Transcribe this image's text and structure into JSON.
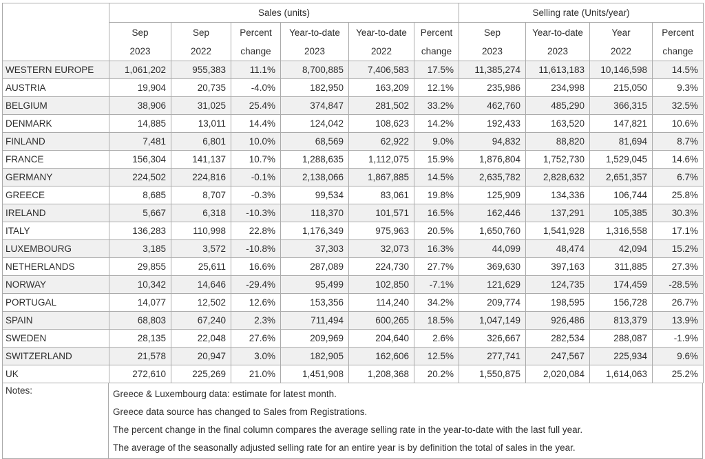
{
  "table": {
    "header_groups": [
      {
        "label": "Sales (units)"
      },
      {
        "label": "Selling rate (Units/year)"
      }
    ],
    "sub_headers": [
      [
        "Sep",
        "2023"
      ],
      [
        "Sep",
        "2022"
      ],
      [
        "Percent",
        "change"
      ],
      [
        "Year-to-date",
        "2023"
      ],
      [
        "Year-to-date",
        "2022"
      ],
      [
        "Percent",
        "change"
      ],
      [
        "Sep",
        "2023"
      ],
      [
        "Year-to-date",
        "2023"
      ],
      [
        "Year",
        "2022"
      ],
      [
        "Percent",
        "change"
      ]
    ],
    "rows": [
      {
        "country": "WESTERN EUROPE",
        "values": [
          "1,061,202",
          "955,383",
          "11.1%",
          "8,700,885",
          "7,406,583",
          "17.5%",
          "11,385,274",
          "11,613,183",
          "10,146,598",
          "14.5%"
        ]
      },
      {
        "country": "AUSTRIA",
        "values": [
          "19,904",
          "20,735",
          "-4.0%",
          "182,950",
          "163,209",
          "12.1%",
          "235,986",
          "234,998",
          "215,050",
          "9.3%"
        ]
      },
      {
        "country": "BELGIUM",
        "values": [
          "38,906",
          "31,025",
          "25.4%",
          "374,847",
          "281,502",
          "33.2%",
          "462,760",
          "485,290",
          "366,315",
          "32.5%"
        ]
      },
      {
        "country": "DENMARK",
        "values": [
          "14,885",
          "13,011",
          "14.4%",
          "124,042",
          "108,623",
          "14.2%",
          "192,433",
          "163,520",
          "147,821",
          "10.6%"
        ]
      },
      {
        "country": "FINLAND",
        "values": [
          "7,481",
          "6,801",
          "10.0%",
          "68,569",
          "62,922",
          "9.0%",
          "94,832",
          "88,820",
          "81,694",
          "8.7%"
        ]
      },
      {
        "country": "FRANCE",
        "values": [
          "156,304",
          "141,137",
          "10.7%",
          "1,288,635",
          "1,112,075",
          "15.9%",
          "1,876,804",
          "1,752,730",
          "1,529,045",
          "14.6%"
        ]
      },
      {
        "country": "GERMANY",
        "values": [
          "224,502",
          "224,816",
          "-0.1%",
          "2,138,066",
          "1,867,885",
          "14.5%",
          "2,635,782",
          "2,828,632",
          "2,651,357",
          "6.7%"
        ]
      },
      {
        "country": "GREECE",
        "values": [
          "8,685",
          "8,707",
          "-0.3%",
          "99,534",
          "83,061",
          "19.8%",
          "125,909",
          "134,336",
          "106,744",
          "25.8%"
        ]
      },
      {
        "country": "IRELAND",
        "values": [
          "5,667",
          "6,318",
          "-10.3%",
          "118,370",
          "101,571",
          "16.5%",
          "162,446",
          "137,291",
          "105,385",
          "30.3%"
        ]
      },
      {
        "country": "ITALY",
        "values": [
          "136,283",
          "110,998",
          "22.8%",
          "1,176,349",
          "975,963",
          "20.5%",
          "1,650,760",
          "1,541,928",
          "1,316,558",
          "17.1%"
        ]
      },
      {
        "country": "LUXEMBOURG",
        "values": [
          "3,185",
          "3,572",
          "-10.8%",
          "37,303",
          "32,073",
          "16.3%",
          "44,099",
          "48,474",
          "42,094",
          "15.2%"
        ]
      },
      {
        "country": "NETHERLANDS",
        "values": [
          "29,855",
          "25,611",
          "16.6%",
          "287,089",
          "224,730",
          "27.7%",
          "369,630",
          "397,163",
          "311,885",
          "27.3%"
        ]
      },
      {
        "country": "NORWAY",
        "values": [
          "10,342",
          "14,646",
          "-29.4%",
          "95,499",
          "102,850",
          "-7.1%",
          "121,629",
          "124,735",
          "174,459",
          "-28.5%"
        ]
      },
      {
        "country": "PORTUGAL",
        "values": [
          "14,077",
          "12,502",
          "12.6%",
          "153,356",
          "114,240",
          "34.2%",
          "209,774",
          "198,595",
          "156,728",
          "26.7%"
        ]
      },
      {
        "country": "SPAIN",
        "values": [
          "68,803",
          "67,240",
          "2.3%",
          "711,494",
          "600,265",
          "18.5%",
          "1,047,149",
          "926,486",
          "813,379",
          "13.9%"
        ]
      },
      {
        "country": "SWEDEN",
        "values": [
          "28,135",
          "22,048",
          "27.6%",
          "209,969",
          "204,640",
          "2.6%",
          "326,667",
          "282,534",
          "288,087",
          "-1.9%"
        ]
      },
      {
        "country": "SWITZERLAND",
        "values": [
          "21,578",
          "20,947",
          "3.0%",
          "182,905",
          "162,606",
          "12.5%",
          "277,741",
          "247,567",
          "225,934",
          "9.6%"
        ]
      },
      {
        "country": "UK",
        "values": [
          "272,610",
          "225,269",
          "21.0%",
          "1,451,908",
          "1,208,368",
          "20.2%",
          "1,550,875",
          "2,020,084",
          "1,614,063",
          "25.2%"
        ]
      }
    ]
  },
  "notes": {
    "label": "Notes:",
    "lines": [
      "Greece & Luxembourg data: estimate for latest month.",
      "Greece data source has changed to Sales from Registrations.",
      "The percent change in the final column compares the average selling rate in the year-to-date with the last full year.",
      "The average of the seasonally adjusted selling rate for an entire year is by definition the total of sales in the year."
    ]
  },
  "colors": {
    "stripe": "#f0f0f0",
    "border": "#ababab",
    "text": "#2e2e2e",
    "background": "#ffffff"
  }
}
